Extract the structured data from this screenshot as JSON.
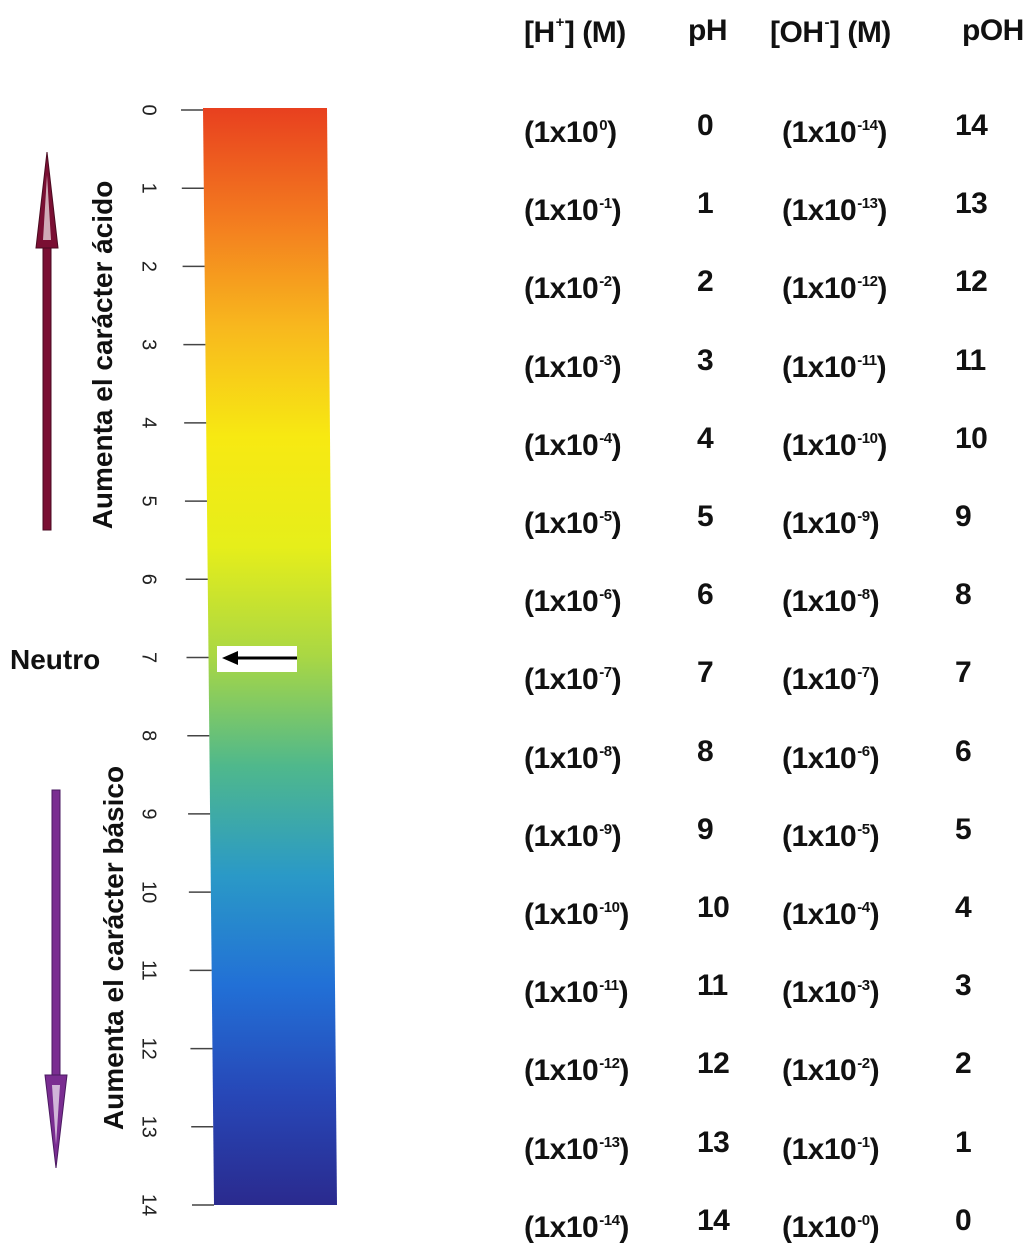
{
  "scale": {
    "gradient_stops": [
      "#e8401f",
      "#f37a1f",
      "#f8b81e",
      "#f7e912",
      "#e6ee1a",
      "#a9d744",
      "#4fb88c",
      "#2a99c7",
      "#2270d6",
      "#2747b7",
      "#2a2a8e"
    ],
    "ticks": [
      "0",
      "1",
      "2",
      "3",
      "4",
      "5",
      "6",
      "7",
      "8",
      "9",
      "10",
      "11",
      "12",
      "13",
      "14"
    ],
    "neutral_label": "Neutro",
    "acid_label": "Aumenta el carácter ácido",
    "base_label": "Aumenta el carácter básico",
    "acid_arrow_color": "#7a0f33",
    "base_arrow_color": "#7a2d91"
  },
  "table": {
    "headers": {
      "h_conc": {
        "pre": "[H",
        "sup": "+",
        "post": "] (M)"
      },
      "ph": "pH",
      "oh_conc": {
        "pre": "[OH",
        "sup": "-",
        "post": "] (M)"
      },
      "poh": "pOH"
    },
    "rows": [
      {
        "h_base": "(1x10",
        "h_exp": "0",
        "ph": "0",
        "oh_base": "(1x10",
        "oh_exp": "-14",
        "poh": "14"
      },
      {
        "h_base": "(1x10",
        "h_exp": "-1",
        "ph": "1",
        "oh_base": "(1x10",
        "oh_exp": "-13",
        "poh": "13"
      },
      {
        "h_base": "(1x10",
        "h_exp": "-2",
        "ph": "2",
        "oh_base": "(1x10",
        "oh_exp": "-12",
        "poh": "12"
      },
      {
        "h_base": "(1x10",
        "h_exp": "-3",
        "ph": "3",
        "oh_base": "(1x10",
        "oh_exp": "-11",
        "poh": "11"
      },
      {
        "h_base": "(1x10",
        "h_exp": "-4",
        "ph": "4",
        "oh_base": "(1x10",
        "oh_exp": "-10",
        "poh": "10"
      },
      {
        "h_base": "(1x10",
        "h_exp": "-5",
        "ph": "5",
        "oh_base": "(1x10",
        "oh_exp": "-9",
        "poh": "9"
      },
      {
        "h_base": "(1x10",
        "h_exp": "-6",
        "ph": "6",
        "oh_base": "(1x10",
        "oh_exp": "-8",
        "poh": "8"
      },
      {
        "h_base": "(1x10",
        "h_exp": "-7",
        "ph": "7",
        "oh_base": "(1x10",
        "oh_exp": "-7",
        "poh": "7"
      },
      {
        "h_base": "(1x10",
        "h_exp": "-8",
        "ph": "8",
        "oh_base": "(1x10",
        "oh_exp": "-6",
        "poh": "6"
      },
      {
        "h_base": "(1x10",
        "h_exp": "-9",
        "ph": "9",
        "oh_base": "(1x10",
        "oh_exp": "-5",
        "poh": "5"
      },
      {
        "h_base": "(1x10",
        "h_exp": "-10",
        "ph": "10",
        "oh_base": "(1x10",
        "oh_exp": "-4",
        "poh": "4"
      },
      {
        "h_base": "(1x10",
        "h_exp": "-11",
        "ph": "11",
        "oh_base": "(1x10",
        "oh_exp": "-3",
        "poh": "3"
      },
      {
        "h_base": "(1x10",
        "h_exp": "-12",
        "ph": "12",
        "oh_base": "(1x10",
        "oh_exp": "-2",
        "poh": "2"
      },
      {
        "h_base": "(1x10",
        "h_exp": "-13",
        "ph": "13",
        "oh_base": "(1x10",
        "oh_exp": "-1",
        "poh": "1"
      },
      {
        "h_base": "(1x10",
        "h_exp": "-14",
        "ph": "14",
        "oh_base": "(1x10",
        "oh_exp": "-0",
        "poh": "0"
      }
    ]
  }
}
